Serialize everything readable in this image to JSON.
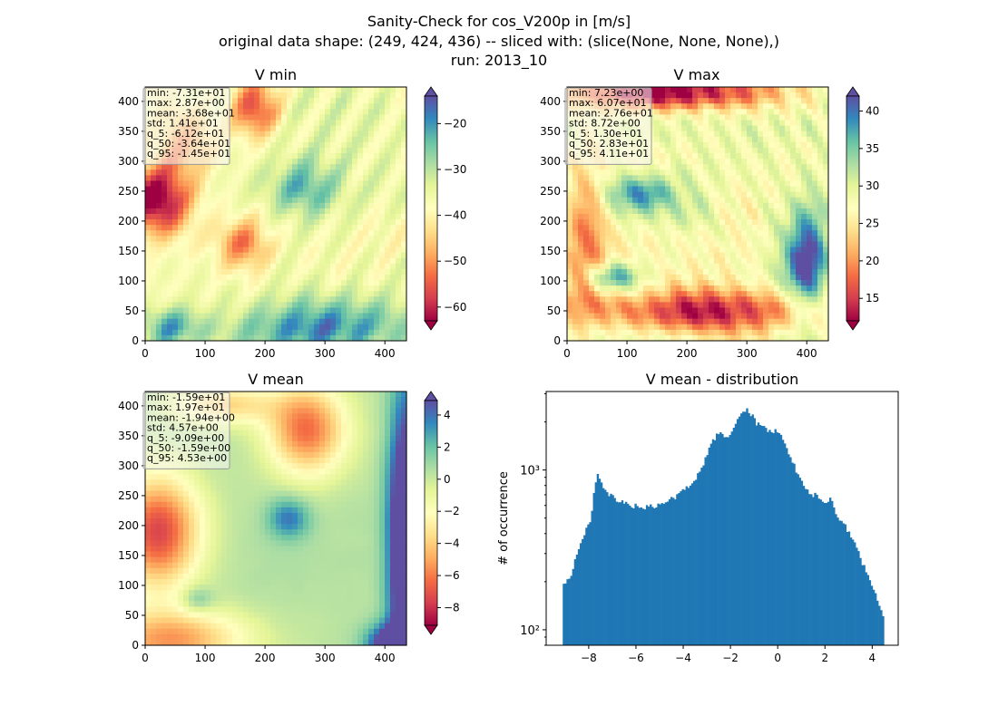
{
  "figure": {
    "title_lines": [
      "Sanity-Check for cos_V200p in [m/s]",
      "original data shape: (249, 424, 436) -- sliced with: (slice(None, None, None),)",
      "run: 2013_10"
    ]
  },
  "panels": [
    {
      "title": "V min",
      "colormap": "Spectral",
      "colorbar": {
        "vmin": -63,
        "vmax": -14,
        "ticks": [
          -60,
          -50,
          -40,
          -30,
          -20
        ],
        "extend": "both"
      },
      "stats": [
        "min: -7.31e+01",
        "max: 2.87e+00",
        "mean: -3.68e+01",
        "std: 1.41e+01",
        "q_5: -6.12e+01",
        "q_50: -3.64e+01",
        "q_95: -1.45e+01"
      ]
    },
    {
      "title": "V max",
      "colormap": "Spectral",
      "colorbar": {
        "vmin": 12,
        "vmax": 42,
        "ticks": [
          15,
          20,
          25,
          30,
          35,
          40
        ],
        "extend": "both"
      },
      "stats": [
        "min: 7.23e+00",
        "max: 6.07e+01",
        "mean: 2.76e+01",
        "std: 8.72e+00",
        "q_5: 1.30e+01",
        "q_50: 2.83e+01",
        "q_95: 4.11e+01"
      ]
    },
    {
      "title": "V mean",
      "colormap": "Spectral",
      "colorbar": {
        "vmin": -9.1,
        "vmax": 4.9,
        "ticks": [
          -8,
          -6,
          -4,
          -2,
          0,
          2,
          4
        ],
        "extend": "both"
      },
      "stats": [
        "min: -1.59e+01",
        "max: 1.97e+01",
        "mean: -1.94e+00",
        "std: 4.57e+00",
        "q_5: -9.09e+00",
        "q_50: -1.59e+00",
        "q_95: 4.53e+00"
      ]
    }
  ],
  "map_axes": {
    "xlim": [
      0,
      436
    ],
    "ylim": [
      0,
      424
    ],
    "xticks": [
      0,
      100,
      200,
      300,
      400
    ],
    "yticks": [
      0,
      50,
      100,
      150,
      200,
      250,
      300,
      350,
      400
    ]
  },
  "colors": {
    "histogram_bar": "#1f77b4",
    "spectral": [
      "#9e0142",
      "#d53e4f",
      "#f46d43",
      "#fdae61",
      "#fee08b",
      "#ffffbf",
      "#e6f598",
      "#abdda4",
      "#66c2a5",
      "#3288bd",
      "#5e4fa2"
    ]
  },
  "chart_data": [
    {
      "type": "histogram",
      "title": "V mean - distribution",
      "xlabel": "",
      "ylabel": "# of occurrence",
      "yscale": "log",
      "xlim": [
        -9.8,
        5.1
      ],
      "ylim": [
        80,
        3100
      ],
      "xticks": [
        -8,
        -6,
        -4,
        -2,
        0,
        2,
        4
      ],
      "xtick_labels": [
        "−8",
        "−6",
        "−4",
        "−2",
        "0",
        "2",
        "4"
      ],
      "yticks": [
        100,
        1000
      ],
      "ytick_labels": [
        "10²",
        "10³"
      ],
      "bin_range": [
        -9.1,
        4.5
      ],
      "profile_points": [
        [
          -9.1,
          190
        ],
        [
          -8.8,
          210
        ],
        [
          -8.5,
          300
        ],
        [
          -8.2,
          390
        ],
        [
          -8.0,
          450
        ],
        [
          -7.85,
          560
        ],
        [
          -7.75,
          780
        ],
        [
          -7.65,
          960
        ],
        [
          -7.55,
          880
        ],
        [
          -7.4,
          760
        ],
        [
          -7.2,
          700
        ],
        [
          -7.0,
          680
        ],
        [
          -6.8,
          640
        ],
        [
          -6.5,
          620
        ],
        [
          -6.2,
          600
        ],
        [
          -5.9,
          590
        ],
        [
          -5.6,
          580
        ],
        [
          -5.3,
          590
        ],
        [
          -5.0,
          600
        ],
        [
          -4.7,
          630
        ],
        [
          -4.4,
          670
        ],
        [
          -4.1,
          720
        ],
        [
          -3.8,
          790
        ],
        [
          -3.5,
          880
        ],
        [
          -3.2,
          1050
        ],
        [
          -2.9,
          1350
        ],
        [
          -2.6,
          1650
        ],
        [
          -2.4,
          1750
        ],
        [
          -2.2,
          1600
        ],
        [
          -2.0,
          1650
        ],
        [
          -1.8,
          1950
        ],
        [
          -1.5,
          2250
        ],
        [
          -1.3,
          2350
        ],
        [
          -1.1,
          2200
        ],
        [
          -0.9,
          1950
        ],
        [
          -0.6,
          1850
        ],
        [
          -0.3,
          1750
        ],
        [
          0.0,
          1750
        ],
        [
          0.3,
          1450
        ],
        [
          0.6,
          1150
        ],
        [
          0.9,
          900
        ],
        [
          1.2,
          760
        ],
        [
          1.5,
          700
        ],
        [
          1.8,
          680
        ],
        [
          2.0,
          600
        ],
        [
          2.2,
          680
        ],
        [
          2.4,
          560
        ],
        [
          2.7,
          480
        ],
        [
          3.0,
          410
        ],
        [
          3.3,
          330
        ],
        [
          3.6,
          260
        ],
        [
          3.9,
          200
        ],
        [
          4.2,
          160
        ],
        [
          4.4,
          130
        ],
        [
          4.5,
          110
        ]
      ]
    }
  ]
}
